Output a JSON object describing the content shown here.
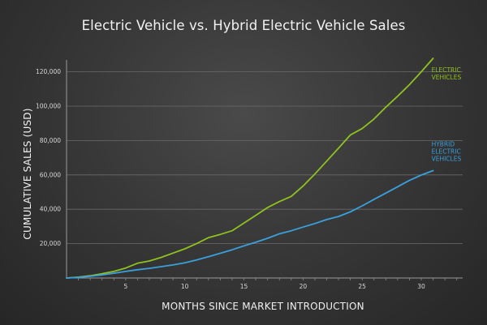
{
  "chart_data": {
    "type": "line",
    "title": "Electric Vehicle vs. Hybrid Electric Vehicle Sales",
    "xlabel": "MONTHS SINCE MARKET INTRODUCTION",
    "ylabel": "CUMULATIVE SALES (USD)",
    "xlim": [
      0,
      33.5
    ],
    "ylim": [
      0,
      125000
    ],
    "x_ticks": [
      5,
      10,
      15,
      20,
      25,
      30
    ],
    "x_tick_labels": [
      "5",
      "10",
      "15",
      "20",
      "25",
      "30"
    ],
    "y_ticks": [
      20000,
      40000,
      60000,
      80000,
      100000,
      120000
    ],
    "y_tick_labels": [
      "20,000",
      "40,000",
      "60,000",
      "80,000",
      "100,000",
      "120,000"
    ],
    "grid": "horizontal",
    "legend": "inline labels at line ends",
    "series": [
      {
        "name": "ELECTRIC VEHICLES",
        "label_lines": [
          "ELECTRIC",
          "VEHICLES"
        ],
        "color": "#8fc21f",
        "x": [
          0,
          1,
          2,
          3,
          4,
          5,
          6,
          7,
          8,
          9,
          10,
          11,
          12,
          13,
          14,
          15,
          16,
          17,
          18,
          19,
          20,
          21,
          22,
          23,
          24,
          25,
          26,
          27,
          28,
          29,
          30,
          31
        ],
        "values": [
          0,
          500,
          1300,
          2500,
          3800,
          5800,
          8600,
          9900,
          12000,
          14500,
          17000,
          20000,
          23500,
          25400,
          27500,
          32000,
          36400,
          41000,
          44500,
          47500,
          53500,
          60500,
          68000,
          75500,
          83200,
          87000,
          92500,
          99400,
          105800,
          112500,
          120000,
          130000
        ]
      },
      {
        "name": "HYBRID ELECTRIC VEHICLES",
        "label_lines": [
          "HYBRID",
          "ELECTRIC",
          "VEHICLES"
        ],
        "color": "#3aa0dc",
        "x": [
          0,
          1,
          2,
          3,
          4,
          5,
          6,
          7,
          8,
          9,
          10,
          11,
          12,
          13,
          14,
          15,
          16,
          17,
          18,
          19,
          20,
          21,
          22,
          23,
          24,
          25,
          26,
          27,
          28,
          29,
          30,
          31
        ],
        "values": [
          0,
          400,
          1000,
          1800,
          2800,
          3800,
          4800,
          5600,
          6600,
          7600,
          8800,
          10500,
          12400,
          14400,
          16400,
          18700,
          20800,
          23100,
          25700,
          27500,
          29600,
          31700,
          34000,
          35800,
          38500,
          42000,
          45700,
          49400,
          53100,
          56800,
          59900,
          62500
        ]
      }
    ]
  }
}
